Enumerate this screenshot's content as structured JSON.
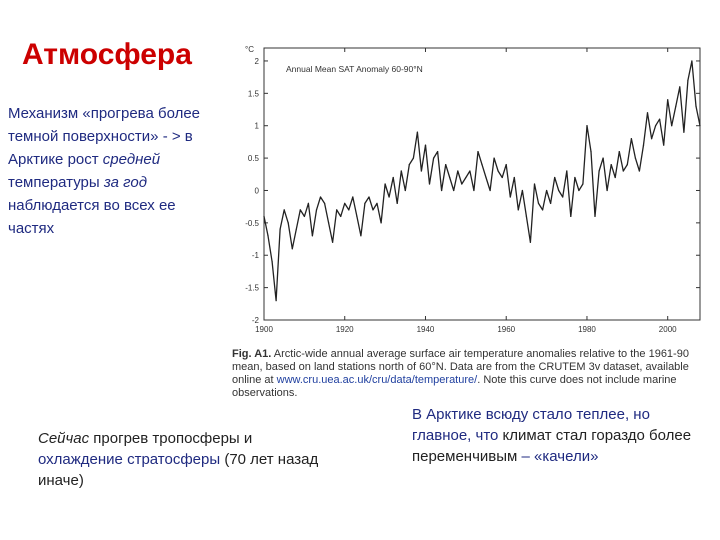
{
  "slide": {
    "title": "Атмосфера",
    "left_text": {
      "part1": "Механизм «прогрева более темной поверхности» - > в Арктике рост ",
      "italic1": "средней",
      "part2": " температуры ",
      "italic2": "за год",
      "part3": " наблюдается во всех ее частях"
    },
    "caption": {
      "label": "Fig. A1.",
      "text1": " Arctic-wide annual average surface air temperature anomalies relative to the 1961-90 mean, based on land stations north of 60°N. Data are from the CRUTEM 3v dataset, available online at ",
      "link": "www.cru.uea.ac.uk/cru/data/temperature/",
      "text2": ". Note this curve does not include marine observations."
    },
    "bottom_left": {
      "italic": "Сейчас",
      "text1": " прогрев тропосферы и ",
      "blue": "охлаждение стратосферы",
      "text2": " (70 лет назад иначе)"
    },
    "bottom_right": {
      "text1": "В Арктике всюду стало теплее, но главное, что ",
      "dark": "климат стал гораздо более переменчивым",
      "text2": " – «качели»"
    }
  },
  "chart_data": {
    "type": "line",
    "title": "Annual Mean SAT Anomaly 60-90°N",
    "unit_label": "°C",
    "xlim": [
      1900,
      2008
    ],
    "ylim": [
      -2,
      2.2
    ],
    "x_ticks": [
      "1900",
      "1920",
      "1940",
      "1960",
      "1980",
      "2000"
    ],
    "y_ticks": [
      "-2",
      "-1.5",
      "-1",
      "-0.5",
      "0",
      "0.5",
      "1",
      "1.5",
      "2"
    ],
    "grid": false,
    "line_color": "#222222",
    "x": [
      1900,
      1901,
      1902,
      1903,
      1904,
      1905,
      1906,
      1907,
      1908,
      1909,
      1910,
      1911,
      1912,
      1913,
      1914,
      1915,
      1916,
      1917,
      1918,
      1919,
      1920,
      1921,
      1922,
      1923,
      1924,
      1925,
      1926,
      1927,
      1928,
      1929,
      1930,
      1931,
      1932,
      1933,
      1934,
      1935,
      1936,
      1937,
      1938,
      1939,
      1940,
      1941,
      1942,
      1943,
      1944,
      1945,
      1946,
      1947,
      1948,
      1949,
      1950,
      1951,
      1952,
      1953,
      1954,
      1955,
      1956,
      1957,
      1958,
      1959,
      1960,
      1961,
      1962,
      1963,
      1964,
      1965,
      1966,
      1967,
      1968,
      1969,
      1970,
      1971,
      1972,
      1973,
      1974,
      1975,
      1976,
      1977,
      1978,
      1979,
      1980,
      1981,
      1982,
      1983,
      1984,
      1985,
      1986,
      1987,
      1988,
      1989,
      1990,
      1991,
      1992,
      1993,
      1994,
      1995,
      1996,
      1997,
      1998,
      1999,
      2000,
      2001,
      2002,
      2003,
      2004,
      2005,
      2006,
      2007,
      2008
    ],
    "y": [
      -0.4,
      -0.7,
      -1.1,
      -1.7,
      -0.6,
      -0.3,
      -0.5,
      -0.9,
      -0.6,
      -0.3,
      -0.4,
      -0.2,
      -0.7,
      -0.3,
      -0.1,
      -0.2,
      -0.5,
      -0.8,
      -0.3,
      -0.4,
      -0.2,
      -0.3,
      -0.1,
      -0.4,
      -0.7,
      -0.2,
      -0.1,
      -0.3,
      -0.2,
      -0.5,
      0.1,
      -0.1,
      0.2,
      -0.2,
      0.3,
      0.0,
      0.4,
      0.5,
      0.9,
      0.3,
      0.7,
      0.1,
      0.5,
      0.6,
      0.0,
      0.4,
      0.2,
      0.0,
      0.3,
      0.1,
      0.2,
      0.3,
      0.0,
      0.6,
      0.4,
      0.2,
      0.0,
      0.5,
      0.3,
      0.2,
      0.4,
      -0.1,
      0.2,
      -0.3,
      0.0,
      -0.4,
      -0.8,
      0.1,
      -0.2,
      -0.3,
      0.0,
      -0.2,
      0.2,
      0.0,
      -0.1,
      0.3,
      -0.4,
      0.2,
      0.0,
      0.1,
      1.0,
      0.6,
      -0.4,
      0.3,
      0.5,
      0.0,
      0.4,
      0.2,
      0.6,
      0.3,
      0.4,
      0.8,
      0.5,
      0.3,
      0.7,
      1.2,
      0.8,
      1.0,
      1.1,
      0.7,
      1.4,
      1.0,
      1.3,
      1.6,
      0.9,
      1.7,
      2.0,
      1.3,
      1.0
    ]
  }
}
